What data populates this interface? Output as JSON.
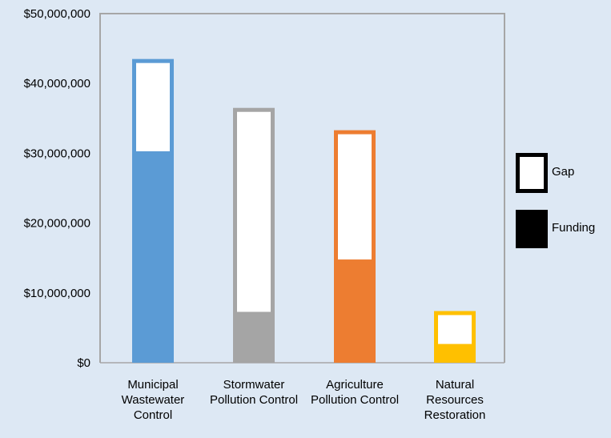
{
  "chart_data": {
    "type": "bar",
    "stacked": true,
    "categories": [
      [
        "Municipal",
        "Wastewater",
        "Control"
      ],
      [
        "Stormwater",
        "Pollution Control"
      ],
      [
        "Agriculture",
        "Pollution Control"
      ],
      [
        "Natural",
        "Resources",
        "Restoration"
      ]
    ],
    "series": [
      {
        "name": "Funding",
        "values": [
          30000000,
          7000000,
          14500000,
          2400000
        ]
      },
      {
        "name": "Gap",
        "values": [
          13500000,
          29500000,
          18800000,
          5000000
        ]
      }
    ],
    "bar_colors": [
      "#5b9bd5",
      "#a5a5a5",
      "#ed7d31",
      "#ffc000"
    ],
    "y_ticks": [
      "$0",
      "$10,000,000",
      "$20,000,000",
      "$30,000,000",
      "$40,000,000",
      "$50,000,000"
    ],
    "ylim": [
      0,
      50000000
    ],
    "legend": {
      "position": "right",
      "items": [
        {
          "label": "Gap",
          "swatch": "hollow"
        },
        {
          "label": "Funding",
          "swatch": "filled"
        }
      ]
    },
    "grid": false,
    "background_color": "#dde8f4"
  }
}
